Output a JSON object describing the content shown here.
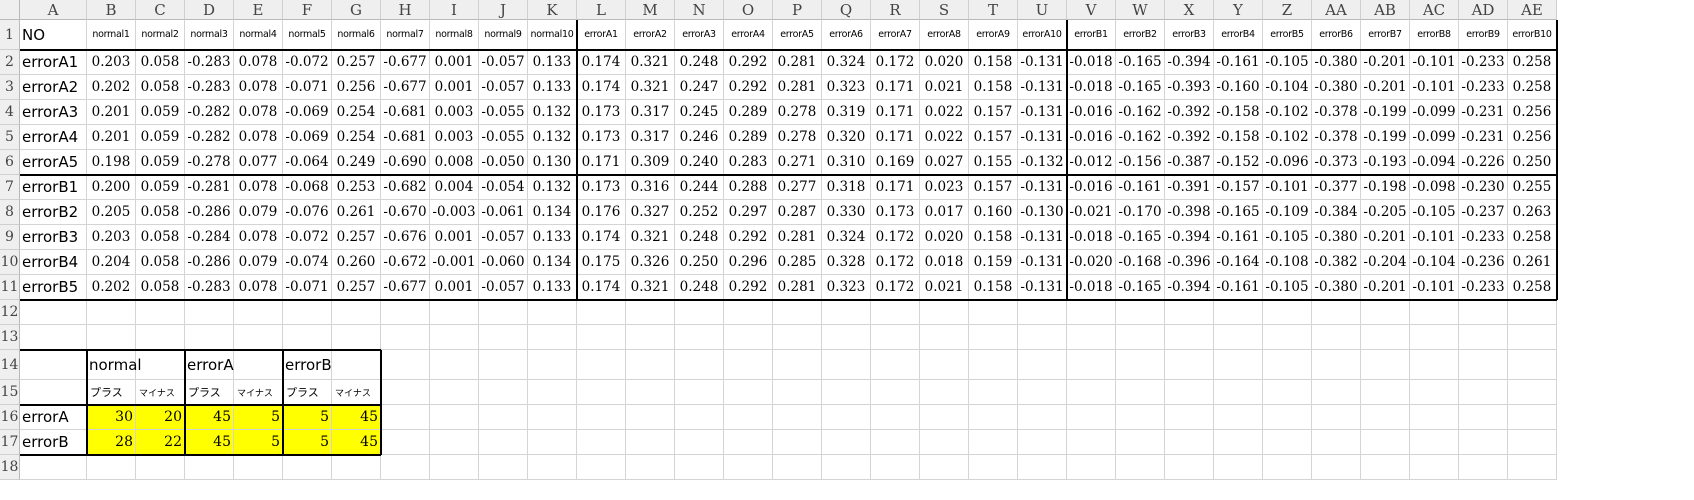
{
  "sheet": {
    "columns": [
      "A",
      "B",
      "C",
      "D",
      "E",
      "F",
      "G",
      "H",
      "I",
      "J",
      "K",
      "L",
      "M",
      "N",
      "O",
      "P",
      "Q",
      "R",
      "S",
      "T",
      "U",
      "V",
      "W",
      "X",
      "Y",
      "Z",
      "AA",
      "AB",
      "AC",
      "AD",
      "AE"
    ],
    "rows": [
      "1",
      "2",
      "3",
      "4",
      "5",
      "6",
      "7",
      "8",
      "9",
      "10",
      "11",
      "12",
      "13",
      "14",
      "15",
      "16",
      "17",
      "18"
    ]
  },
  "main_table": {
    "corner": "NO",
    "headers": [
      "normal1",
      "normal2",
      "normal3",
      "normal4",
      "normal5",
      "normal6",
      "normal7",
      "normal8",
      "normal9",
      "normal10",
      "errorA1",
      "errorA2",
      "errorA3",
      "errorA4",
      "errorA5",
      "errorA6",
      "errorA7",
      "errorA8",
      "errorA9",
      "errorA10",
      "errorB1",
      "errorB2",
      "errorB3",
      "errorB4",
      "errorB5",
      "errorB6",
      "errorB7",
      "errorB8",
      "errorB9",
      "errorB10"
    ],
    "rows": [
      {
        "label": "errorA1",
        "values": [
          "0.203",
          "0.058",
          "-0.283",
          "0.078",
          "-0.072",
          "0.257",
          "-0.677",
          "0.001",
          "-0.057",
          "0.133",
          "0.174",
          "0.321",
          "0.248",
          "0.292",
          "0.281",
          "0.324",
          "0.172",
          "0.020",
          "0.158",
          "-0.131",
          "-0.018",
          "-0.165",
          "-0.394",
          "-0.161",
          "-0.105",
          "-0.380",
          "-0.201",
          "-0.101",
          "-0.233",
          "0.258"
        ]
      },
      {
        "label": "errorA2",
        "values": [
          "0.202",
          "0.058",
          "-0.283",
          "0.078",
          "-0.071",
          "0.256",
          "-0.677",
          "0.001",
          "-0.057",
          "0.133",
          "0.174",
          "0.321",
          "0.247",
          "0.292",
          "0.281",
          "0.323",
          "0.171",
          "0.021",
          "0.158",
          "-0.131",
          "-0.018",
          "-0.165",
          "-0.393",
          "-0.160",
          "-0.104",
          "-0.380",
          "-0.201",
          "-0.101",
          "-0.233",
          "0.258"
        ]
      },
      {
        "label": "errorA3",
        "values": [
          "0.201",
          "0.059",
          "-0.282",
          "0.078",
          "-0.069",
          "0.254",
          "-0.681",
          "0.003",
          "-0.055",
          "0.132",
          "0.173",
          "0.317",
          "0.245",
          "0.289",
          "0.278",
          "0.319",
          "0.171",
          "0.022",
          "0.157",
          "-0.131",
          "-0.016",
          "-0.162",
          "-0.392",
          "-0.158",
          "-0.102",
          "-0.378",
          "-0.199",
          "-0.099",
          "-0.231",
          "0.256"
        ]
      },
      {
        "label": "errorA4",
        "values": [
          "0.201",
          "0.059",
          "-0.282",
          "0.078",
          "-0.069",
          "0.254",
          "-0.681",
          "0.003",
          "-0.055",
          "0.132",
          "0.173",
          "0.317",
          "0.246",
          "0.289",
          "0.278",
          "0.320",
          "0.171",
          "0.022",
          "0.157",
          "-0.131",
          "-0.016",
          "-0.162",
          "-0.392",
          "-0.158",
          "-0.102",
          "-0.378",
          "-0.199",
          "-0.099",
          "-0.231",
          "0.256"
        ]
      },
      {
        "label": "errorA5",
        "values": [
          "0.198",
          "0.059",
          "-0.278",
          "0.077",
          "-0.064",
          "0.249",
          "-0.690",
          "0.008",
          "-0.050",
          "0.130",
          "0.171",
          "0.309",
          "0.240",
          "0.283",
          "0.271",
          "0.310",
          "0.169",
          "0.027",
          "0.155",
          "-0.132",
          "-0.012",
          "-0.156",
          "-0.387",
          "-0.152",
          "-0.096",
          "-0.373",
          "-0.193",
          "-0.094",
          "-0.226",
          "0.250"
        ]
      },
      {
        "label": "errorB1",
        "values": [
          "0.200",
          "0.059",
          "-0.281",
          "0.078",
          "-0.068",
          "0.253",
          "-0.682",
          "0.004",
          "-0.054",
          "0.132",
          "0.173",
          "0.316",
          "0.244",
          "0.288",
          "0.277",
          "0.318",
          "0.171",
          "0.023",
          "0.157",
          "-0.131",
          "-0.016",
          "-0.161",
          "-0.391",
          "-0.157",
          "-0.101",
          "-0.377",
          "-0.198",
          "-0.098",
          "-0.230",
          "0.255"
        ]
      },
      {
        "label": "errorB2",
        "values": [
          "0.205",
          "0.058",
          "-0.286",
          "0.079",
          "-0.076",
          "0.261",
          "-0.670",
          "-0.003",
          "-0.061",
          "0.134",
          "0.176",
          "0.327",
          "0.252",
          "0.297",
          "0.287",
          "0.330",
          "0.173",
          "0.017",
          "0.160",
          "-0.130",
          "-0.021",
          "-0.170",
          "-0.398",
          "-0.165",
          "-0.109",
          "-0.384",
          "-0.205",
          "-0.105",
          "-0.237",
          "0.263"
        ]
      },
      {
        "label": "errorB3",
        "values": [
          "0.203",
          "0.058",
          "-0.284",
          "0.078",
          "-0.072",
          "0.257",
          "-0.676",
          "0.001",
          "-0.057",
          "0.133",
          "0.174",
          "0.321",
          "0.248",
          "0.292",
          "0.281",
          "0.324",
          "0.172",
          "0.020",
          "0.158",
          "-0.131",
          "-0.018",
          "-0.165",
          "-0.394",
          "-0.161",
          "-0.105",
          "-0.380",
          "-0.201",
          "-0.101",
          "-0.233",
          "0.258"
        ]
      },
      {
        "label": "errorB4",
        "values": [
          "0.204",
          "0.058",
          "-0.286",
          "0.079",
          "-0.074",
          "0.260",
          "-0.672",
          "-0.001",
          "-0.060",
          "0.134",
          "0.175",
          "0.326",
          "0.250",
          "0.296",
          "0.285",
          "0.328",
          "0.172",
          "0.018",
          "0.159",
          "-0.131",
          "-0.020",
          "-0.168",
          "-0.396",
          "-0.164",
          "-0.108",
          "-0.382",
          "-0.204",
          "-0.104",
          "-0.236",
          "0.261"
        ]
      },
      {
        "label": "errorB5",
        "values": [
          "0.202",
          "0.058",
          "-0.283",
          "0.078",
          "-0.071",
          "0.257",
          "-0.677",
          "0.001",
          "-0.057",
          "0.133",
          "0.174",
          "0.321",
          "0.248",
          "0.292",
          "0.281",
          "0.323",
          "0.172",
          "0.021",
          "0.158",
          "-0.131",
          "-0.018",
          "-0.165",
          "-0.394",
          "-0.161",
          "-0.105",
          "-0.380",
          "-0.201",
          "-0.101",
          "-0.233",
          "0.258"
        ]
      }
    ]
  },
  "summary": {
    "groups": [
      "normal",
      "errorA",
      "errorB"
    ],
    "subs": [
      "プラス",
      "マイナス"
    ],
    "rows": [
      {
        "label": "errorA",
        "values": [
          "30",
          "20",
          "45",
          "5",
          "5",
          "45"
        ]
      },
      {
        "label": "errorB",
        "values": [
          "28",
          "22",
          "45",
          "5",
          "5",
          "45"
        ]
      }
    ],
    "highlight_color": "#ffff00"
  }
}
